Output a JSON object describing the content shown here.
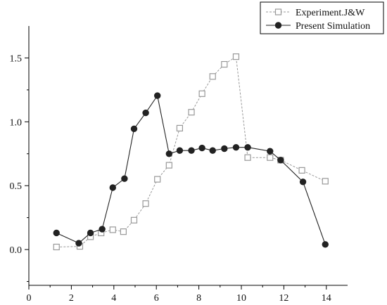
{
  "chart_data": {
    "type": "line",
    "title": "",
    "xlabel": "",
    "ylabel": "",
    "xlim": [
      0,
      15
    ],
    "ylim": [
      -0.28,
      1.75
    ],
    "x_ticks": [
      0,
      2,
      4,
      6,
      8,
      10,
      12,
      14
    ],
    "y_ticks": [
      0.0,
      0.5,
      1.0,
      1.5
    ],
    "x_tick_labels": [
      "0",
      "2",
      "4",
      "6",
      "8",
      "10",
      "12",
      "14"
    ],
    "y_tick_labels": [
      "0.0",
      "0.5",
      "1.0",
      "1.5"
    ],
    "grid": false,
    "legend_position": "top-right",
    "series": [
      {
        "name": "Experiment.J&W",
        "marker": "open-square",
        "line_style": "dashed",
        "color": "#999999",
        "x": [
          1.3,
          2.4,
          2.9,
          3.4,
          3.95,
          4.45,
          4.95,
          5.5,
          6.05,
          6.6,
          7.1,
          7.65,
          8.15,
          8.65,
          9.2,
          9.75,
          10.3,
          11.35,
          11.85,
          12.85,
          13.95
        ],
        "y": [
          0.02,
          0.025,
          0.1,
          0.13,
          0.155,
          0.14,
          0.23,
          0.36,
          0.55,
          0.66,
          0.95,
          1.075,
          1.22,
          1.355,
          1.45,
          1.51,
          0.72,
          0.72,
          0.7,
          0.62,
          0.535
        ]
      },
      {
        "name": "Present Simulation",
        "marker": "filled-circle",
        "line_style": "solid",
        "color": "#222222",
        "x": [
          1.3,
          2.35,
          2.9,
          3.45,
          3.95,
          4.5,
          4.95,
          5.5,
          6.05,
          6.6,
          7.1,
          7.65,
          8.15,
          8.65,
          9.2,
          9.75,
          10.3,
          11.35,
          11.85,
          12.9,
          13.95
        ],
        "y": [
          0.13,
          0.05,
          0.13,
          0.16,
          0.485,
          0.555,
          0.945,
          1.07,
          1.205,
          0.75,
          0.775,
          0.775,
          0.795,
          0.775,
          0.79,
          0.8,
          0.8,
          0.77,
          0.7,
          0.53,
          0.04
        ]
      }
    ]
  }
}
